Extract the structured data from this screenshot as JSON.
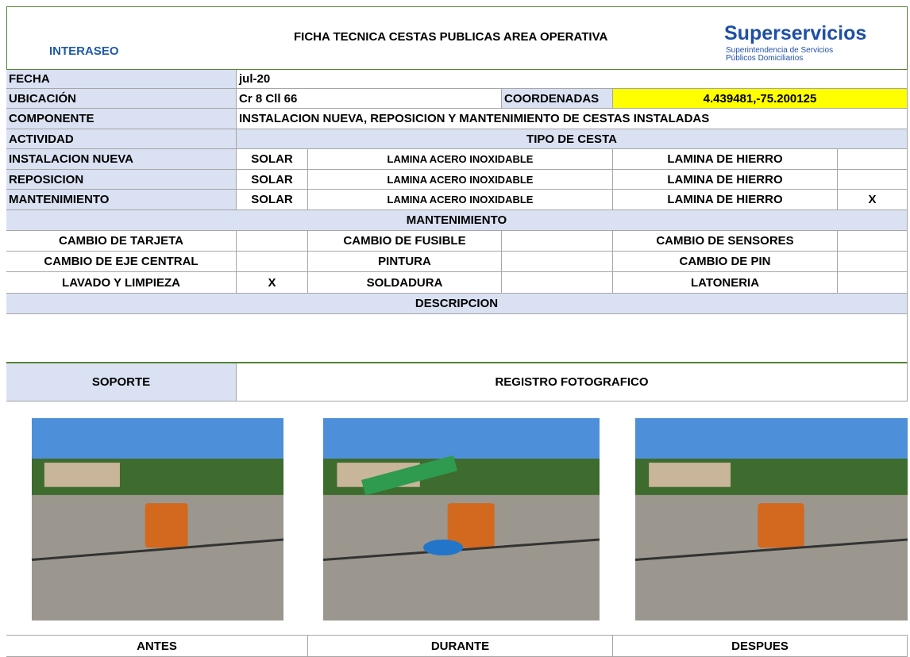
{
  "header": {
    "title": "FICHA TECNICA CESTAS PUBLICAS AREA OPERATIVA",
    "logo_left": "INTERASEO",
    "logo_right_title": "Superservicios",
    "logo_right_sub": [
      "Superintendencia de Servicios",
      "Públicos Domiciliarios"
    ]
  },
  "info": {
    "fecha_label": "FECHA",
    "fecha": "jul-20",
    "ubicacion_label": "UBICACIÓN",
    "ubicacion": "Cr 8 Cll 66",
    "coordenadas_label": "COORDENADAS",
    "coordenadas": "4.439481,-75.200125",
    "componente_label": "COMPONENTE",
    "componente": "INSTALACION NUEVA, REPOSICION Y MANTENIMIENTO DE CESTAS INSTALADAS"
  },
  "actividad": {
    "label": "ACTIVIDAD",
    "tipo_label": "TIPO DE CESTA",
    "rows": [
      {
        "cells": [
          "INSTALACION NUEVA",
          "SOLAR",
          "LAMINA ACERO INOXIDABLE",
          "LAMINA DE HIERRO"
        ]
      },
      {
        "cells": [
          "REPOSICION",
          "SOLAR",
          "LAMINA ACERO INOXIDABLE",
          "LAMINA DE HIERRO"
        ]
      },
      {
        "cells": [
          "MANTENIMIENTO",
          "SOLAR",
          "LAMINA ACERO INOXIDABLE",
          "LAMINA DE HIERRO",
          "X"
        ]
      }
    ]
  },
  "mantenimiento": {
    "title": "MANTENIMIENTO",
    "rows": [
      [
        {
          "label": "CAMBIO DE TARJETA"
        },
        {
          "label": "CAMBIO DE FUSIBLE"
        },
        {
          "label": "CAMBIO DE SENSORES"
        }
      ],
      [
        {
          "label": "CAMBIO DE EJE CENTRAL"
        },
        {
          "label": "PINTURA"
        },
        {
          "label": "CAMBIO DE PIN"
        }
      ],
      [
        {
          "label": "LAVADO Y LIMPIEZA",
          "mark": "X"
        },
        {
          "label": "SOLDADURA"
        },
        {
          "label": "LATONERIA"
        }
      ]
    ]
  },
  "descripcion": {
    "title": "DESCRIPCION"
  },
  "registro": {
    "soporte": "SOPORTE",
    "title": "REGISTRO FOTOGRAFICO",
    "photos": [
      {
        "caption": "ANTES"
      },
      {
        "caption": "DURANTE"
      },
      {
        "caption": "DESPUES"
      }
    ]
  }
}
